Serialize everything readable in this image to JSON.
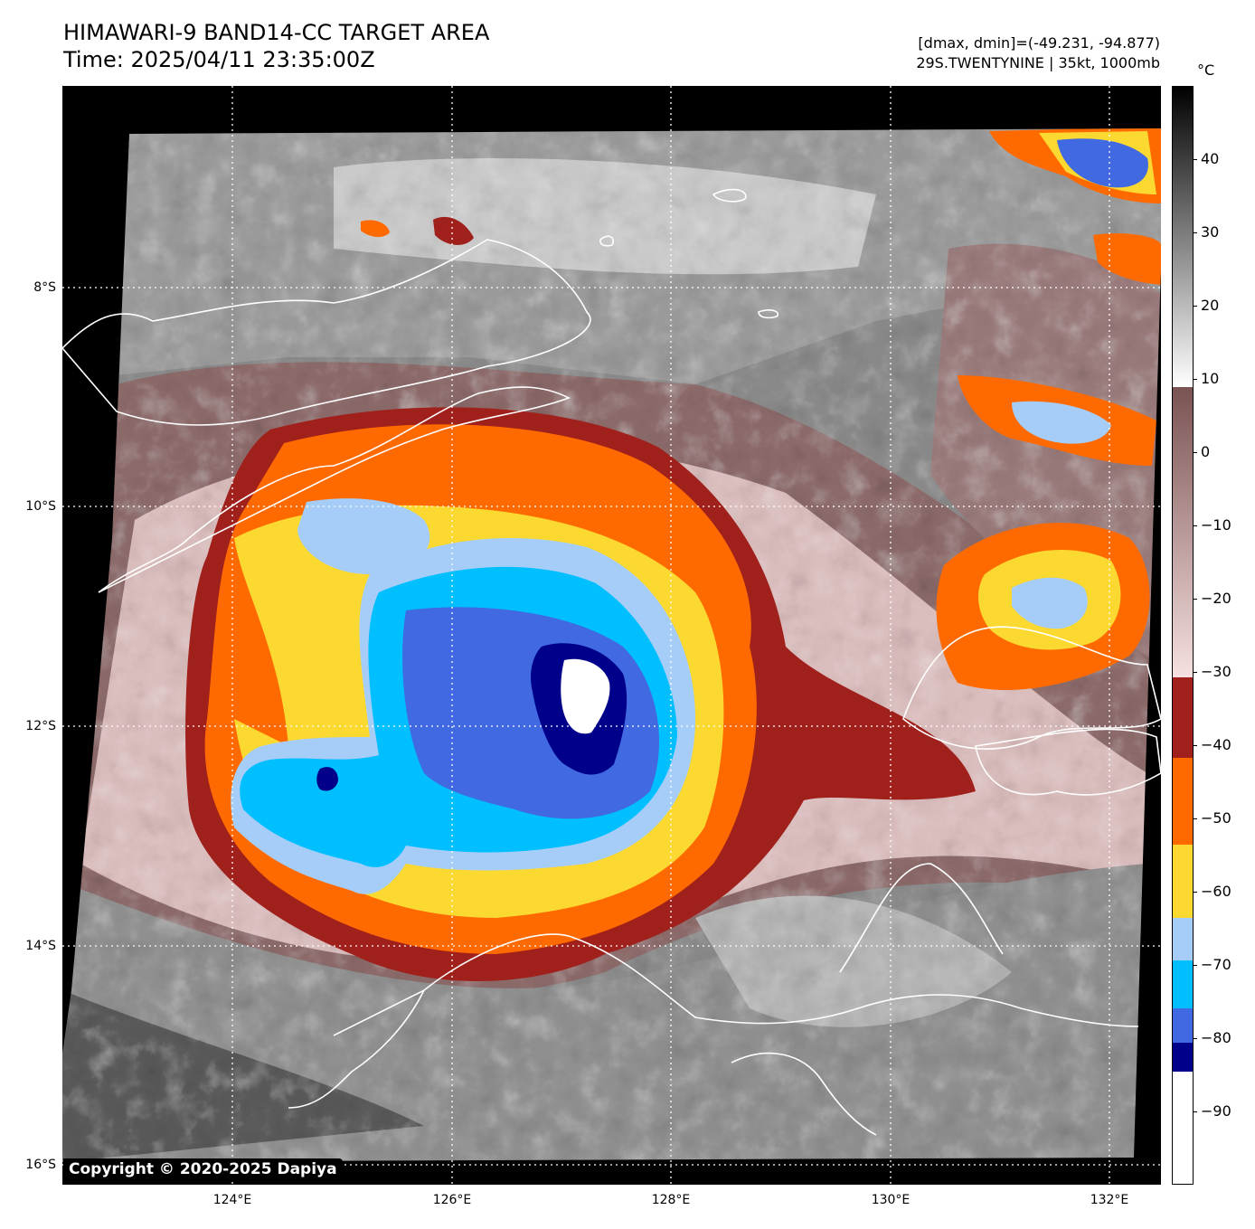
{
  "header": {
    "title_line1": "HIMAWARI-9 BAND14-CC TARGET AREA",
    "title_line2": "Time: 2025/04/11 23:35:00Z",
    "stats_line": "[dmax, dmin]=(-49.231, -94.877)",
    "storm_line": "29S.TWENTYNINE | 35kt, 1000mb"
  },
  "map": {
    "copyright": "Copyright © 2020-2025 Dapiya",
    "lat_labels": [
      "8°S",
      "10°S",
      "12°S",
      "14°S",
      "16°S"
    ],
    "lon_labels": [
      "124°E",
      "126°E",
      "128°E",
      "130°E",
      "132°E"
    ],
    "colors": {
      "warm_gray": "#8a8a8a",
      "brown": "#8c6a6a",
      "pink": "#d9bcbc",
      "dark_red": "#a0201c",
      "orange": "#ff6a00",
      "yellow": "#fcd930",
      "light_blue": "#a6cdf7",
      "cyan": "#00bfff",
      "royal_blue": "#4169e1",
      "navy": "#00008b",
      "white": "#ffffff"
    }
  },
  "colorbar": {
    "unit": "°C",
    "ticks": [
      "40",
      "30",
      "20",
      "10",
      "0",
      "−10",
      "−20",
      "−30",
      "−40",
      "−50",
      "−60",
      "−70",
      "−80",
      "−90"
    ],
    "tick_values": [
      40,
      30,
      20,
      10,
      0,
      -10,
      -20,
      -30,
      -40,
      -50,
      -60,
      -70,
      -80,
      -90
    ],
    "range": [
      -100,
      50
    ]
  }
}
